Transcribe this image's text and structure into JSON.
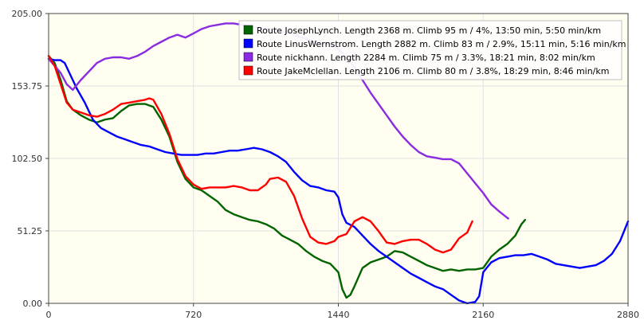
{
  "chart_data": {
    "type": "line",
    "title": "",
    "xlabel": "",
    "ylabel": "",
    "xlim": [
      0,
      2880
    ],
    "ylim": [
      0,
      205
    ],
    "xticks": [
      0,
      720,
      1440,
      2160,
      2880
    ],
    "yticks": [
      0,
      51.25,
      102.5,
      153.75,
      205
    ],
    "xtick_labels": [
      "0",
      "720",
      "1440",
      "2160",
      "2880"
    ],
    "ytick_labels": [
      "0.00",
      "51.25",
      "102.50",
      "153.75",
      "205.00"
    ],
    "grid": true,
    "legend_position": "top-right",
    "background": "#fffef0",
    "series": [
      {
        "name": "Route JosephLynch. Length 2368 m. Climb 95 m / 4%, 13:50 min, 5:50 min/km",
        "color": "#006400",
        "points": [
          [
            0,
            175
          ],
          [
            30,
            170
          ],
          [
            60,
            158
          ],
          [
            90,
            143
          ],
          [
            120,
            137
          ],
          [
            160,
            133
          ],
          [
            200,
            130
          ],
          [
            240,
            128
          ],
          [
            280,
            130
          ],
          [
            320,
            131
          ],
          [
            360,
            136
          ],
          [
            400,
            140
          ],
          [
            440,
            141
          ],
          [
            480,
            141
          ],
          [
            520,
            139
          ],
          [
            560,
            130
          ],
          [
            600,
            118
          ],
          [
            640,
            100
          ],
          [
            680,
            88
          ],
          [
            720,
            82
          ],
          [
            760,
            80
          ],
          [
            800,
            76
          ],
          [
            840,
            72
          ],
          [
            880,
            66
          ],
          [
            920,
            63
          ],
          [
            960,
            61
          ],
          [
            1000,
            59
          ],
          [
            1040,
            58
          ],
          [
            1080,
            56
          ],
          [
            1120,
            53
          ],
          [
            1160,
            48
          ],
          [
            1200,
            45
          ],
          [
            1240,
            42
          ],
          [
            1280,
            37
          ],
          [
            1320,
            33
          ],
          [
            1360,
            30
          ],
          [
            1400,
            28
          ],
          [
            1440,
            22
          ],
          [
            1460,
            10
          ],
          [
            1480,
            4
          ],
          [
            1500,
            6
          ],
          [
            1520,
            12
          ],
          [
            1560,
            25
          ],
          [
            1600,
            29
          ],
          [
            1640,
            31
          ],
          [
            1680,
            33
          ],
          [
            1720,
            37
          ],
          [
            1760,
            36
          ],
          [
            1800,
            33
          ],
          [
            1840,
            30
          ],
          [
            1880,
            27
          ],
          [
            1920,
            25
          ],
          [
            1960,
            23
          ],
          [
            2000,
            24
          ],
          [
            2040,
            23
          ],
          [
            2080,
            24
          ],
          [
            2120,
            24
          ],
          [
            2160,
            25
          ],
          [
            2200,
            33
          ],
          [
            2240,
            38
          ],
          [
            2280,
            42
          ],
          [
            2320,
            48
          ],
          [
            2350,
            56
          ],
          [
            2368,
            59
          ]
        ]
      },
      {
        "name": "Route LinusWernstrom. Length 2882 m. Climb 83 m / 2.9%, 15:11 min, 5:16 min/km",
        "color": "#0000ff",
        "points": [
          [
            0,
            173
          ],
          [
            30,
            172
          ],
          [
            60,
            172
          ],
          [
            80,
            170
          ],
          [
            100,
            164
          ],
          [
            120,
            158
          ],
          [
            140,
            152
          ],
          [
            180,
            142
          ],
          [
            220,
            130
          ],
          [
            260,
            124
          ],
          [
            300,
            121
          ],
          [
            340,
            118
          ],
          [
            380,
            116
          ],
          [
            420,
            114
          ],
          [
            460,
            112
          ],
          [
            500,
            111
          ],
          [
            540,
            109
          ],
          [
            580,
            107
          ],
          [
            620,
            106
          ],
          [
            660,
            105
          ],
          [
            700,
            105
          ],
          [
            740,
            105
          ],
          [
            780,
            106
          ],
          [
            820,
            106
          ],
          [
            860,
            107
          ],
          [
            900,
            108
          ],
          [
            940,
            108
          ],
          [
            980,
            109
          ],
          [
            1020,
            110
          ],
          [
            1060,
            109
          ],
          [
            1100,
            107
          ],
          [
            1140,
            104
          ],
          [
            1180,
            100
          ],
          [
            1220,
            93
          ],
          [
            1260,
            87
          ],
          [
            1300,
            83
          ],
          [
            1340,
            82
          ],
          [
            1380,
            80
          ],
          [
            1420,
            79
          ],
          [
            1440,
            75
          ],
          [
            1460,
            63
          ],
          [
            1480,
            57
          ],
          [
            1520,
            54
          ],
          [
            1560,
            48
          ],
          [
            1600,
            42
          ],
          [
            1640,
            37
          ],
          [
            1680,
            33
          ],
          [
            1720,
            29
          ],
          [
            1760,
            25
          ],
          [
            1800,
            21
          ],
          [
            1840,
            18
          ],
          [
            1880,
            15
          ],
          [
            1920,
            12
          ],
          [
            1960,
            10
          ],
          [
            2000,
            6
          ],
          [
            2040,
            2
          ],
          [
            2080,
            0
          ],
          [
            2120,
            1
          ],
          [
            2140,
            5
          ],
          [
            2160,
            22
          ],
          [
            2200,
            29
          ],
          [
            2240,
            32
          ],
          [
            2280,
            33
          ],
          [
            2320,
            34
          ],
          [
            2360,
            34
          ],
          [
            2400,
            35
          ],
          [
            2440,
            33
          ],
          [
            2480,
            31
          ],
          [
            2520,
            28
          ],
          [
            2560,
            27
          ],
          [
            2600,
            26
          ],
          [
            2640,
            25
          ],
          [
            2680,
            26
          ],
          [
            2720,
            27
          ],
          [
            2760,
            30
          ],
          [
            2800,
            35
          ],
          [
            2840,
            44
          ],
          [
            2880,
            58
          ]
        ]
      },
      {
        "name": "Route nickhann. Length 2284 m. Climb 75 m / 3.3%, 18:21 min, 8:02 min/km",
        "color": "#8a2be2",
        "points": [
          [
            0,
            173
          ],
          [
            30,
            168
          ],
          [
            60,
            163
          ],
          [
            90,
            155
          ],
          [
            120,
            151
          ],
          [
            160,
            158
          ],
          [
            200,
            164
          ],
          [
            240,
            170
          ],
          [
            280,
            173
          ],
          [
            320,
            174
          ],
          [
            360,
            174
          ],
          [
            400,
            173
          ],
          [
            440,
            175
          ],
          [
            480,
            178
          ],
          [
            520,
            182
          ],
          [
            560,
            185
          ],
          [
            600,
            188
          ],
          [
            640,
            190
          ],
          [
            680,
            188
          ],
          [
            720,
            191
          ],
          [
            760,
            194
          ],
          [
            800,
            196
          ],
          [
            840,
            197
          ],
          [
            880,
            198
          ],
          [
            920,
            198
          ],
          [
            960,
            197
          ],
          [
            1000,
            196
          ],
          [
            1040,
            195
          ],
          [
            1080,
            194
          ],
          [
            1120,
            193
          ],
          [
            1160,
            192
          ],
          [
            1200,
            191
          ],
          [
            1240,
            189
          ],
          [
            1280,
            187
          ],
          [
            1320,
            185
          ],
          [
            1360,
            184
          ],
          [
            1400,
            183
          ],
          [
            1440,
            180
          ],
          [
            1480,
            174
          ],
          [
            1520,
            167
          ],
          [
            1560,
            158
          ],
          [
            1600,
            149
          ],
          [
            1640,
            141
          ],
          [
            1680,
            133
          ],
          [
            1720,
            125
          ],
          [
            1760,
            118
          ],
          [
            1800,
            112
          ],
          [
            1840,
            107
          ],
          [
            1880,
            104
          ],
          [
            1920,
            103
          ],
          [
            1960,
            102
          ],
          [
            2000,
            102
          ],
          [
            2040,
            99
          ],
          [
            2080,
            92
          ],
          [
            2120,
            85
          ],
          [
            2160,
            78
          ],
          [
            2200,
            70
          ],
          [
            2240,
            65
          ],
          [
            2284,
            60
          ]
        ]
      },
      {
        "name": "Route JakeMclellan. Length 2106 m. Climb 80 m / 3.8%, 18:29 min, 8:46 min/km",
        "color": "#ff0000",
        "points": [
          [
            0,
            175
          ],
          [
            30,
            168
          ],
          [
            60,
            155
          ],
          [
            90,
            142
          ],
          [
            120,
            137
          ],
          [
            160,
            135
          ],
          [
            200,
            133
          ],
          [
            240,
            132
          ],
          [
            280,
            134
          ],
          [
            320,
            137
          ],
          [
            360,
            141
          ],
          [
            400,
            142
          ],
          [
            440,
            143
          ],
          [
            480,
            144
          ],
          [
            500,
            145
          ],
          [
            520,
            144
          ],
          [
            560,
            134
          ],
          [
            600,
            120
          ],
          [
            640,
            102
          ],
          [
            680,
            90
          ],
          [
            720,
            84
          ],
          [
            760,
            81
          ],
          [
            800,
            82
          ],
          [
            840,
            82
          ],
          [
            880,
            82
          ],
          [
            920,
            83
          ],
          [
            960,
            82
          ],
          [
            1000,
            80
          ],
          [
            1040,
            80
          ],
          [
            1080,
            84
          ],
          [
            1100,
            88
          ],
          [
            1140,
            89
          ],
          [
            1180,
            86
          ],
          [
            1220,
            76
          ],
          [
            1260,
            60
          ],
          [
            1300,
            47
          ],
          [
            1340,
            43
          ],
          [
            1380,
            42
          ],
          [
            1420,
            44
          ],
          [
            1440,
            47
          ],
          [
            1480,
            49
          ],
          [
            1520,
            58
          ],
          [
            1560,
            61
          ],
          [
            1600,
            58
          ],
          [
            1640,
            51
          ],
          [
            1680,
            43
          ],
          [
            1720,
            42
          ],
          [
            1760,
            44
          ],
          [
            1800,
            45
          ],
          [
            1840,
            45
          ],
          [
            1880,
            42
          ],
          [
            1920,
            38
          ],
          [
            1960,
            36
          ],
          [
            2000,
            38
          ],
          [
            2040,
            46
          ],
          [
            2080,
            50
          ],
          [
            2106,
            58
          ]
        ]
      }
    ]
  }
}
